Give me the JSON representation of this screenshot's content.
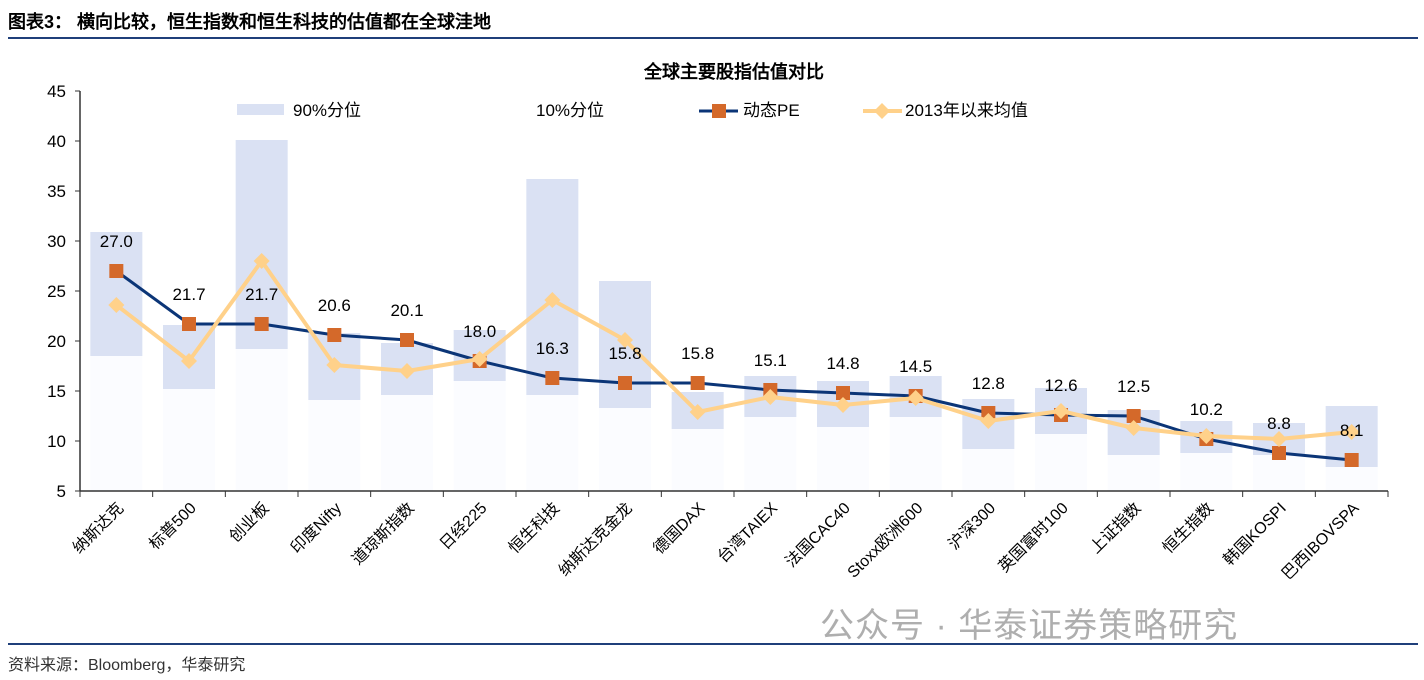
{
  "figure_title": "图表3： 横向比较，恒生指数和恒生科技的估值都在全球洼地",
  "source": "资料来源：Bloomberg，华泰研究",
  "watermark": "公众号 · 华泰证券策略研究",
  "chart_data": {
    "type": "bar",
    "title": "全球主要股指估值对比",
    "ylim": [
      5,
      45
    ],
    "yticks": [
      5,
      10,
      15,
      20,
      25,
      30,
      35,
      40,
      45
    ],
    "grid": false,
    "legend_placement": "top",
    "categories": [
      "纳斯达克",
      "标普500",
      "创业板",
      "印度Nifty",
      "道琼斯指数",
      "日经225",
      "恒生科技",
      "纳斯达克金龙",
      "德国DAX",
      "台湾TAIEX",
      "法国CAC40",
      "Stoxx欧洲600",
      "沪深300",
      "英国富时100",
      "上证指数",
      "恒生指数",
      "韩国KOSPI",
      "巴西IBOVSPA"
    ],
    "series": [
      {
        "name": "90%分位",
        "kind": "bar",
        "color": "#dae1f3",
        "values": [
          30.9,
          21.6,
          40.1,
          20.8,
          19.8,
          21.1,
          36.2,
          26.0,
          14.9,
          16.5,
          16.0,
          16.5,
          14.2,
          15.3,
          13.1,
          12.0,
          11.8,
          13.5
        ]
      },
      {
        "name": "10%分位",
        "kind": "bar",
        "color": "#ffffff",
        "values": [
          18.5,
          15.2,
          19.2,
          14.1,
          14.6,
          16.0,
          14.6,
          13.3,
          11.2,
          12.4,
          11.4,
          12.4,
          9.2,
          10.7,
          8.6,
          8.8,
          8.6,
          7.4
        ]
      },
      {
        "name": "动态PE",
        "kind": "line",
        "color": "#0b3577",
        "marker_color": "#d4692a",
        "values": [
          27.0,
          21.7,
          21.7,
          20.6,
          20.1,
          18.0,
          16.3,
          15.8,
          15.8,
          15.1,
          14.8,
          14.5,
          12.8,
          12.6,
          12.5,
          10.2,
          8.8,
          8.1
        ],
        "labels": [
          "27.0",
          "21.7",
          "21.7",
          "20.6",
          "20.1",
          "18.0",
          "16.3",
          "15.8",
          "15.8",
          "15.1",
          "14.8",
          "14.5",
          "12.8",
          "12.6",
          "12.5",
          "10.2",
          "8.8",
          "8.1"
        ]
      },
      {
        "name": "2013年以来均值",
        "kind": "line",
        "color": "#ffd18a",
        "values": [
          23.6,
          18.0,
          28.0,
          17.6,
          17.0,
          18.2,
          24.1,
          20.1,
          12.9,
          14.4,
          13.6,
          14.3,
          12.0,
          13.0,
          11.3,
          10.5,
          10.2,
          10.9
        ]
      }
    ]
  }
}
